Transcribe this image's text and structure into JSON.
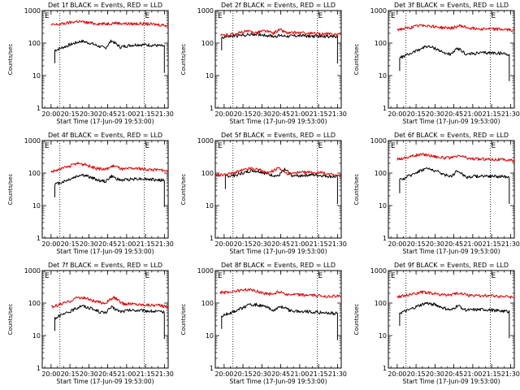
{
  "figure": {
    "ylabel": "Counts/sec",
    "xlabel": "Start Time (17-Jun-09 19:53:00)",
    "x_ticks": [
      "20:00",
      "20:15",
      "20:30",
      "20:45",
      "21:00",
      "21:15",
      "21:30"
    ],
    "y_ticks": [
      "1",
      "10",
      "100",
      "1000"
    ],
    "marker_labels": [
      "E",
      "E"
    ],
    "colors": {
      "events": "#000000",
      "lld": "#e00000",
      "axes": "#000000"
    }
  },
  "chart_data": [
    {
      "type": "line",
      "title": "Det 1f BLACK = Events, RED = LLD",
      "xlim": [
        "19:53",
        "21:33"
      ],
      "ylim": [
        1,
        1000
      ],
      "yscale": "log",
      "dotted_lines": [
        "20:07",
        "21:14"
      ],
      "series": [
        {
          "name": "Events",
          "color": "#000000",
          "start": "20:02",
          "end": "21:31",
          "x": [
            "20:03",
            "20:10",
            "20:17",
            "20:24",
            "20:31",
            "20:38",
            "20:43",
            "20:48",
            "20:55",
            "21:02",
            "21:09",
            "21:16",
            "21:23",
            "21:30"
          ],
          "y": [
            60,
            75,
            95,
            115,
            100,
            80,
            70,
            120,
            75,
            85,
            90,
            88,
            85,
            80
          ]
        },
        {
          "name": "LLD",
          "color": "#e00000",
          "x": [
            "20:00",
            "20:07",
            "20:14",
            "20:21",
            "20:28",
            "20:35",
            "20:43",
            "20:50",
            "20:57",
            "21:04",
            "21:11",
            "21:18",
            "21:25",
            "21:33"
          ],
          "y": [
            360,
            380,
            420,
            470,
            430,
            400,
            390,
            420,
            400,
            390,
            400,
            385,
            370,
            350
          ]
        }
      ]
    },
    {
      "type": "line",
      "title": "Det 2f BLACK = Events, RED = LLD",
      "xlim": [
        "19:53",
        "21:33"
      ],
      "ylim": [
        1,
        1000
      ],
      "yscale": "log",
      "dotted_lines": [
        "20:07",
        "21:14"
      ],
      "series": [
        {
          "name": "Events",
          "color": "#000000",
          "start": "19:57",
          "end": "21:31",
          "x": [
            "19:58",
            "20:05",
            "20:12",
            "20:19",
            "20:26",
            "20:33",
            "20:40",
            "20:45",
            "20:52",
            "20:59",
            "21:06",
            "21:13",
            "21:20",
            "21:30"
          ],
          "y": [
            150,
            160,
            170,
            180,
            190,
            175,
            160,
            170,
            165,
            170,
            165,
            160,
            165,
            155
          ]
        },
        {
          "name": "LLD",
          "color": "#e00000",
          "x": [
            "19:57",
            "20:04",
            "20:11",
            "20:18",
            "20:25",
            "20:32",
            "20:39",
            "20:44",
            "20:51",
            "20:58",
            "21:05",
            "21:12",
            "21:19",
            "21:33"
          ],
          "y": [
            170,
            180,
            200,
            230,
            210,
            240,
            200,
            260,
            200,
            210,
            200,
            195,
            190,
            185
          ]
        }
      ]
    },
    {
      "type": "line",
      "title": "Det 3f BLACK = Events, RED = LLD",
      "xlim": [
        "19:53",
        "21:33"
      ],
      "ylim": [
        1,
        1000
      ],
      "yscale": "log",
      "dotted_lines": [
        "20:07",
        "21:14"
      ],
      "series": [
        {
          "name": "Events",
          "color": "#000000",
          "start": "20:01",
          "end": "21:30",
          "x": [
            "20:02",
            "20:09",
            "20:16",
            "20:23",
            "20:30",
            "20:37",
            "20:43",
            "20:48",
            "20:55",
            "21:02",
            "21:09",
            "21:16",
            "21:23",
            "21:29"
          ],
          "y": [
            35,
            45,
            60,
            80,
            70,
            50,
            45,
            70,
            45,
            48,
            50,
            50,
            48,
            45
          ]
        },
        {
          "name": "LLD",
          "color": "#e00000",
          "x": [
            "20:00",
            "20:07",
            "20:14",
            "20:21",
            "20:28",
            "20:35",
            "20:43",
            "20:50",
            "20:57",
            "21:04",
            "21:11",
            "21:18",
            "21:25",
            "21:33"
          ],
          "y": [
            260,
            280,
            320,
            360,
            330,
            300,
            290,
            340,
            290,
            280,
            275,
            270,
            260,
            250
          ]
        }
      ]
    },
    {
      "type": "line",
      "title": "Det 4f BLACK = Events, RED = LLD",
      "xlim": [
        "19:53",
        "21:33"
      ],
      "ylim": [
        1,
        1000
      ],
      "yscale": "log",
      "dotted_lines": [
        "20:07",
        "21:14"
      ],
      "series": [
        {
          "name": "Events",
          "color": "#000000",
          "start": "20:02",
          "end": "21:31",
          "x": [
            "20:03",
            "20:10",
            "20:17",
            "20:24",
            "20:31",
            "20:38",
            "20:43",
            "20:48",
            "20:55",
            "21:02",
            "21:09",
            "21:16",
            "21:23",
            "21:30"
          ],
          "y": [
            45,
            55,
            70,
            90,
            75,
            60,
            55,
            80,
            60,
            65,
            68,
            65,
            62,
            60
          ]
        },
        {
          "name": "LLD",
          "color": "#e00000",
          "x": [
            "20:00",
            "20:07",
            "20:14",
            "20:21",
            "20:28",
            "20:35",
            "20:43",
            "20:50",
            "20:57",
            "21:04",
            "21:11",
            "21:18",
            "21:25",
            "21:33"
          ],
          "y": [
            110,
            130,
            160,
            200,
            180,
            140,
            130,
            170,
            130,
            140,
            135,
            130,
            125,
            115
          ]
        }
      ]
    },
    {
      "type": "line",
      "title": "Det 5f BLACK = Events, RED = LLD",
      "xlim": [
        "19:53",
        "21:33"
      ],
      "ylim": [
        1,
        1000
      ],
      "yscale": "log",
      "dotted_lines": [
        "20:07",
        "21:14"
      ],
      "series": [
        {
          "name": "Events",
          "color": "#000000",
          "start": "20:00",
          "end": "21:31",
          "x": [
            "20:01",
            "20:08",
            "20:15",
            "20:22",
            "20:29",
            "20:36",
            "20:43",
            "20:48",
            "20:55",
            "21:02",
            "21:09",
            "21:16",
            "21:23",
            "21:30"
          ],
          "y": [
            80,
            85,
            100,
            120,
            110,
            90,
            80,
            130,
            80,
            85,
            88,
            85,
            80,
            75
          ]
        },
        {
          "name": "LLD",
          "color": "#e00000",
          "x": [
            "19:53",
            "20:00",
            "20:07",
            "20:14",
            "20:21",
            "20:28",
            "20:35",
            "20:43",
            "20:50",
            "20:57",
            "21:04",
            "21:11",
            "21:18",
            "21:33"
          ],
          "y": [
            85,
            90,
            100,
            120,
            140,
            125,
            100,
            140,
            95,
            100,
            105,
            105,
            100,
            80
          ]
        }
      ]
    },
    {
      "type": "line",
      "title": "Det 6f BLACK = Events, RED = LLD",
      "xlim": [
        "19:53",
        "21:33"
      ],
      "ylim": [
        1,
        1000
      ],
      "yscale": "log",
      "dotted_lines": [
        "20:07",
        "21:14"
      ],
      "series": [
        {
          "name": "Events",
          "color": "#000000",
          "start": "20:01",
          "end": "21:30",
          "x": [
            "20:02",
            "20:09",
            "20:16",
            "20:23",
            "20:30",
            "20:37",
            "20:43",
            "20:48",
            "20:55",
            "21:02",
            "21:09",
            "21:16",
            "21:23",
            "21:29"
          ],
          "y": [
            60,
            80,
            110,
            140,
            120,
            90,
            80,
            120,
            75,
            80,
            82,
            80,
            78,
            75
          ]
        },
        {
          "name": "LLD",
          "color": "#e00000",
          "x": [
            "20:00",
            "20:07",
            "20:14",
            "20:21",
            "20:28",
            "20:35",
            "20:43",
            "20:50",
            "20:57",
            "21:04",
            "21:11",
            "21:18",
            "21:25",
            "21:33"
          ],
          "y": [
            270,
            300,
            350,
            380,
            340,
            300,
            290,
            340,
            280,
            270,
            270,
            265,
            255,
            245
          ]
        }
      ]
    },
    {
      "type": "line",
      "title": "Det 7f BLACK = Events, RED = LLD",
      "xlim": [
        "19:53",
        "21:33"
      ],
      "ylim": [
        1,
        1000
      ],
      "yscale": "log",
      "dotted_lines": [
        "20:07",
        "21:14"
      ],
      "series": [
        {
          "name": "Events",
          "color": "#000000",
          "start": "20:02",
          "end": "21:31",
          "x": [
            "20:03",
            "20:10",
            "20:17",
            "20:24",
            "20:31",
            "20:38",
            "20:43",
            "20:48",
            "20:55",
            "21:02",
            "21:09",
            "21:16",
            "21:23",
            "21:30"
          ],
          "y": [
            35,
            45,
            60,
            85,
            70,
            55,
            50,
            75,
            55,
            60,
            60,
            58,
            55,
            52
          ]
        },
        {
          "name": "LLD",
          "color": "#e00000",
          "x": [
            "20:00",
            "20:07",
            "20:14",
            "20:21",
            "20:28",
            "20:35",
            "20:43",
            "20:50",
            "20:57",
            "21:04",
            "21:11",
            "21:18",
            "21:25",
            "21:33"
          ],
          "y": [
            75,
            90,
            110,
            150,
            140,
            110,
            100,
            150,
            95,
            95,
            90,
            88,
            85,
            78
          ]
        }
      ]
    },
    {
      "type": "line",
      "title": "Det 8f BLACK = Events, RED = LLD",
      "xlim": [
        "19:53",
        "21:33"
      ],
      "ylim": [
        1,
        1000
      ],
      "yscale": "log",
      "dotted_lines": [
        "20:07",
        "21:14"
      ],
      "series": [
        {
          "name": "Events",
          "color": "#000000",
          "start": "19:57",
          "end": "21:31",
          "x": [
            "19:58",
            "20:05",
            "20:12",
            "20:19",
            "20:26",
            "20:33",
            "20:40",
            "20:45",
            "20:52",
            "20:59",
            "21:06",
            "21:13",
            "21:20",
            "21:30"
          ],
          "y": [
            40,
            50,
            65,
            85,
            90,
            75,
            60,
            80,
            60,
            55,
            55,
            52,
            50,
            48
          ]
        },
        {
          "name": "LLD",
          "color": "#e00000",
          "x": [
            "19:57",
            "20:04",
            "20:11",
            "20:18",
            "20:25",
            "20:32",
            "20:39",
            "20:44",
            "20:51",
            "20:58",
            "21:05",
            "21:12",
            "21:19",
            "21:33"
          ],
          "y": [
            210,
            220,
            240,
            260,
            240,
            200,
            190,
            230,
            180,
            180,
            175,
            170,
            165,
            160
          ]
        }
      ]
    },
    {
      "type": "line",
      "title": "Det 9f BLACK = Events, RED = LLD",
      "xlim": [
        "19:53",
        "21:33"
      ],
      "ylim": [
        1,
        1000
      ],
      "yscale": "log",
      "dotted_lines": [
        "20:07",
        "21:14"
      ],
      "series": [
        {
          "name": "Events",
          "color": "#000000",
          "start": "20:01",
          "end": "21:30",
          "x": [
            "20:02",
            "20:09",
            "20:16",
            "20:23",
            "20:30",
            "20:37",
            "20:43",
            "20:48",
            "20:55",
            "21:02",
            "21:09",
            "21:16",
            "21:23",
            "21:29"
          ],
          "y": [
            50,
            60,
            80,
            100,
            90,
            70,
            60,
            85,
            60,
            62,
            63,
            60,
            58,
            55
          ]
        },
        {
          "name": "LLD",
          "color": "#e00000",
          "x": [
            "20:00",
            "20:07",
            "20:14",
            "20:21",
            "20:28",
            "20:35",
            "20:43",
            "20:50",
            "20:57",
            "21:04",
            "21:11",
            "21:18",
            "21:25",
            "21:33"
          ],
          "y": [
            160,
            170,
            200,
            220,
            200,
            180,
            175,
            210,
            170,
            170,
            168,
            165,
            160,
            150
          ]
        }
      ]
    }
  ]
}
